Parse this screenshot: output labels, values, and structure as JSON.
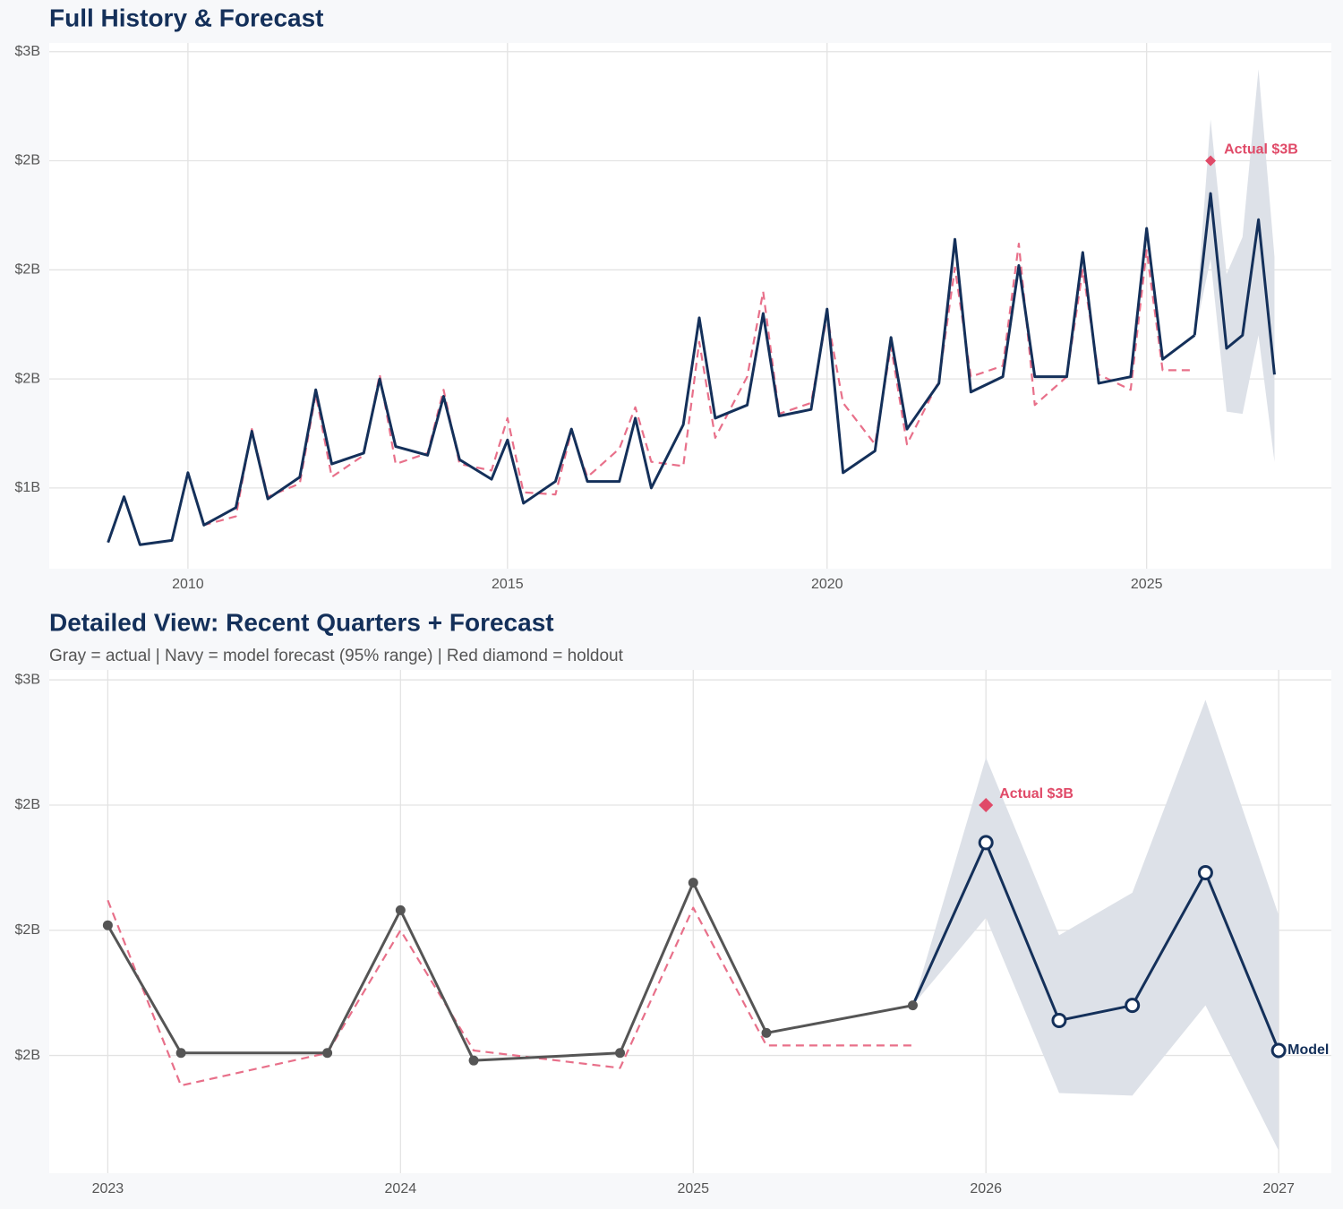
{
  "chart_data": [
    {
      "type": "line",
      "title": "Full History & Forecast",
      "x": [
        2008.75,
        2009,
        2009.25,
        2009.75,
        2010,
        2010.25,
        2010.75,
        2011,
        2011.25,
        2011.75,
        2012,
        2012.25,
        2012.75,
        2013,
        2013.25,
        2013.75,
        2014,
        2014.25,
        2014.75,
        2015,
        2015.25,
        2015.75,
        2016,
        2016.25,
        2016.75,
        2017,
        2017.25,
        2017.75,
        2018,
        2018.25,
        2018.75,
        2019,
        2019.25,
        2019.75,
        2020,
        2020.25,
        2020.75,
        2021,
        2021.25,
        2021.75,
        2022,
        2022.25,
        2022.75,
        2023,
        2023.25,
        2023.75,
        2024,
        2024.25,
        2024.75,
        2025,
        2025.25,
        2025.75,
        2026,
        2026.25,
        2026.5,
        2026.75,
        2027
      ],
      "xlim": [
        2007.83,
        2027.89
      ],
      "xticks": [
        2010,
        2015,
        2020,
        2025
      ],
      "ylim": [
        0.63,
        3.04
      ],
      "yticks": [
        {
          "value": 1,
          "label": "$1B"
        },
        {
          "value": 1.5,
          "label": "$2B"
        },
        {
          "value": 2,
          "label": "$2B"
        },
        {
          "value": 2.5,
          "label": "$2B"
        },
        {
          "value": 3,
          "label": "$3B"
        }
      ],
      "grid": true,
      "markers": false,
      "actual": {
        "color": "#14305a",
        "values": [
          0.75,
          0.96,
          0.74,
          0.76,
          1.07,
          0.83,
          0.91,
          1.26,
          0.95,
          1.05,
          1.45,
          1.11,
          1.16,
          1.5,
          1.19,
          1.15,
          1.42,
          1.13,
          1.04,
          1.22,
          0.93,
          1.03,
          1.27,
          1.03,
          1.03,
          1.32,
          1.0,
          1.29,
          1.78,
          1.32,
          1.38,
          1.8,
          1.33,
          1.36,
          1.82,
          1.07,
          1.17,
          1.69,
          1.27,
          1.48,
          2.14,
          1.44,
          1.51,
          2.02,
          1.51,
          1.51,
          2.08,
          1.48,
          1.51,
          2.19,
          1.59,
          1.7,
          null,
          null,
          null,
          null,
          null
        ]
      },
      "fitted": {
        "color": "#e8708a",
        "dashed": true,
        "values": [
          null,
          null,
          null,
          null,
          1.07,
          0.83,
          0.87,
          1.27,
          0.96,
          1.02,
          1.43,
          1.05,
          1.15,
          1.52,
          1.11,
          1.16,
          1.45,
          1.11,
          1.08,
          1.32,
          0.98,
          0.97,
          1.26,
          1.05,
          1.18,
          1.37,
          1.12,
          1.1,
          1.67,
          1.23,
          1.51,
          1.9,
          1.34,
          1.39,
          1.79,
          1.39,
          1.2,
          1.65,
          1.2,
          1.49,
          2.01,
          1.51,
          1.56,
          2.12,
          1.38,
          1.51,
          2.0,
          1.52,
          1.45,
          2.09,
          1.54,
          1.54,
          null,
          null,
          null,
          null,
          null
        ]
      },
      "forecast": {
        "color": "#14305a",
        "values": [
          null,
          null,
          null,
          null,
          null,
          null,
          null,
          null,
          null,
          null,
          null,
          null,
          null,
          null,
          null,
          null,
          null,
          null,
          null,
          null,
          null,
          null,
          null,
          null,
          null,
          null,
          null,
          null,
          null,
          null,
          null,
          null,
          null,
          null,
          null,
          null,
          null,
          null,
          null,
          null,
          null,
          null,
          null,
          null,
          null,
          null,
          null,
          null,
          null,
          null,
          null,
          1.7,
          2.35,
          1.64,
          1.7,
          2.23,
          1.52
        ]
      },
      "band": {
        "color": "#dde1e8",
        "upper": [
          null,
          null,
          null,
          null,
          null,
          null,
          null,
          null,
          null,
          null,
          null,
          null,
          null,
          null,
          null,
          null,
          null,
          null,
          null,
          null,
          null,
          null,
          null,
          null,
          null,
          null,
          null,
          null,
          null,
          null,
          null,
          null,
          null,
          null,
          null,
          null,
          null,
          null,
          null,
          null,
          null,
          null,
          null,
          null,
          null,
          null,
          null,
          null,
          null,
          null,
          null,
          1.7,
          2.69,
          1.98,
          2.15,
          2.92,
          2.06
        ],
        "lower": [
          null,
          null,
          null,
          null,
          null,
          null,
          null,
          null,
          null,
          null,
          null,
          null,
          null,
          null,
          null,
          null,
          null,
          null,
          null,
          null,
          null,
          null,
          null,
          null,
          null,
          null,
          null,
          null,
          null,
          null,
          null,
          null,
          null,
          null,
          null,
          null,
          null,
          null,
          null,
          null,
          null,
          null,
          null,
          null,
          null,
          null,
          null,
          null,
          null,
          null,
          null,
          1.7,
          2.05,
          1.35,
          1.34,
          1.7,
          1.12
        ]
      },
      "holdout": {
        "x": 2026,
        "value": 2.5,
        "label": "Actual $3B",
        "color": "#e04a68"
      }
    },
    {
      "type": "line",
      "title": "Detailed View: Recent Quarters + Forecast",
      "subtitle": "Gray = actual  |  Navy = model forecast (95% range)  |  Red diamond = holdout",
      "x": [
        2023,
        2023.25,
        2023.75,
        2024,
        2024.25,
        2024.75,
        2025,
        2025.25,
        2025.75,
        2026,
        2026.25,
        2026.5,
        2026.75,
        2027
      ],
      "xlim": [
        2022.8,
        2027.18
      ],
      "xticks": [
        2023,
        2024,
        2025,
        2026,
        2027
      ],
      "ylim": [
        1.03,
        3.04
      ],
      "yticks": [
        {
          "value": 1.5,
          "label": "$2B"
        },
        {
          "value": 2,
          "label": "$2B"
        },
        {
          "value": 2.5,
          "label": "$2B"
        },
        {
          "value": 3,
          "label": "$3B"
        }
      ],
      "grid": true,
      "markers": true,
      "actual": {
        "color": "#555555",
        "values": [
          2.02,
          1.51,
          1.51,
          2.08,
          1.48,
          1.51,
          2.19,
          1.59,
          1.7,
          null,
          null,
          null,
          null,
          null
        ]
      },
      "fitted": {
        "color": "#e8708a",
        "dashed": true,
        "values": [
          2.12,
          1.38,
          1.51,
          2.0,
          1.52,
          1.45,
          2.09,
          1.54,
          1.54,
          null,
          null,
          null,
          null,
          null
        ]
      },
      "forecast": {
        "color": "#14305a",
        "values": [
          null,
          null,
          null,
          null,
          null,
          null,
          null,
          null,
          1.7,
          2.35,
          1.64,
          1.7,
          2.23,
          1.52
        ]
      },
      "band": {
        "color": "#dde1e8",
        "upper": [
          null,
          null,
          null,
          null,
          null,
          null,
          null,
          null,
          1.7,
          2.69,
          1.98,
          2.15,
          2.92,
          2.06
        ],
        "lower": [
          null,
          null,
          null,
          null,
          null,
          null,
          null,
          null,
          1.7,
          2.05,
          1.35,
          1.34,
          1.7,
          1.12
        ]
      },
      "holdout": {
        "x": 2026,
        "value": 2.5,
        "label": "Actual $3B",
        "color": "#e04a68"
      },
      "end_label": "Model"
    }
  ]
}
